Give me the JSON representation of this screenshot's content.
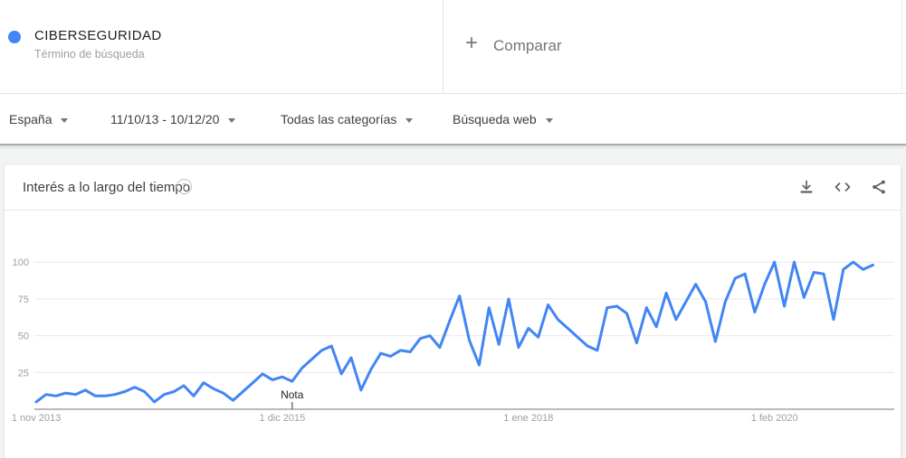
{
  "header": {
    "term": {
      "label": "CIBERSEGURIDAD",
      "sublabel": "Término de búsqueda",
      "dot_color": "#4285f4"
    },
    "compare": {
      "plus": "+",
      "label": "Comparar"
    }
  },
  "filters": [
    {
      "label": "España"
    },
    {
      "label": "11/10/13 - 10/12/20"
    },
    {
      "label": "Todas las categorías"
    },
    {
      "label": "Búsqueda web"
    }
  ],
  "chart_card": {
    "title": "Interés a lo largo del tiempo",
    "help_glyph": "?",
    "actions": [
      "download-icon",
      "embed-icon",
      "share-icon"
    ]
  },
  "chart_data": {
    "type": "line",
    "title": "Interés a lo largo del tiempo",
    "x_start": "2013-11",
    "x_end": "2020-12",
    "x_interval": "month",
    "ylim": [
      0,
      100
    ],
    "y_ticks": [
      25,
      50,
      75,
      100
    ],
    "grid": "horizontal",
    "x_tick_labels": [
      "1 nov 2013",
      "1 dic 2015",
      "1 ene 2018",
      "1 feb 2020"
    ],
    "x_tick_indices": [
      0,
      25,
      50,
      75
    ],
    "annotation": {
      "label": "Nota",
      "month_index": 26
    },
    "series": [
      {
        "name": "CIBERSEGURIDAD",
        "color": "#4285f4",
        "values": [
          5,
          10,
          9,
          11,
          10,
          13,
          9,
          9,
          10,
          12,
          15,
          12,
          5,
          10,
          12,
          16,
          9,
          18,
          14,
          11,
          6,
          12,
          18,
          24,
          20,
          22,
          19,
          28,
          34,
          40,
          43,
          24,
          35,
          13,
          27,
          38,
          36,
          40,
          39,
          48,
          50,
          42,
          60,
          77,
          47,
          30,
          69,
          44,
          75,
          42,
          55,
          49,
          71,
          61,
          55,
          49,
          43,
          40,
          69,
          70,
          65,
          45,
          69,
          56,
          79,
          61,
          73,
          85,
          73,
          46,
          73,
          89,
          92,
          66,
          85,
          100,
          70,
          100,
          76,
          93,
          92,
          61,
          95,
          100,
          95,
          98
        ]
      }
    ]
  }
}
